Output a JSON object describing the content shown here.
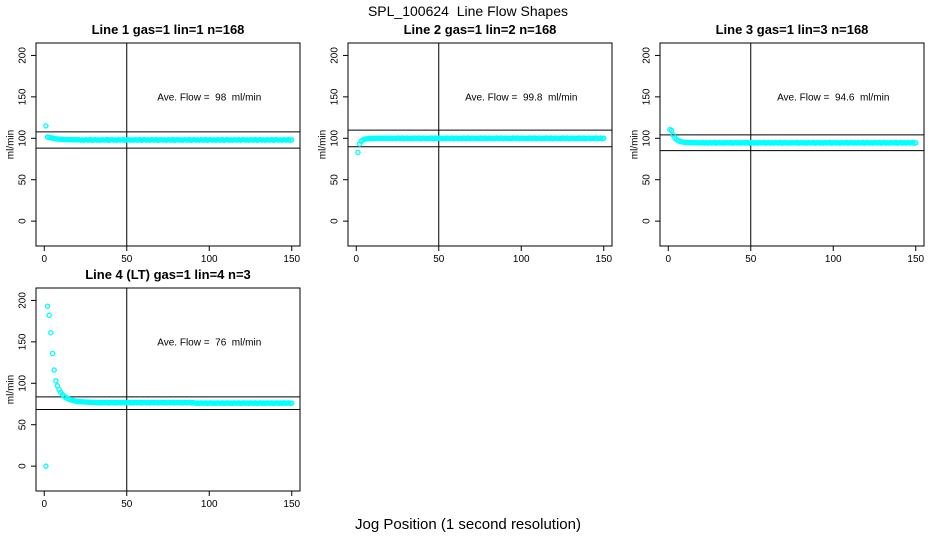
{
  "figure": {
    "title": "SPL_100624  Line Flow Shapes",
    "xlabel": "Jog Position (1 second resolution)"
  },
  "chart_data": {
    "type": "scatter",
    "title": "SPL_100624  Line Flow Shapes",
    "xlabel": "Jog Position (1 second resolution)",
    "ylabel": "ml/min",
    "layout": "2 rows x 3 cols; panels 1-3 in top row, panel 4 in bottom-left; other cells empty",
    "grid": false,
    "x_start": 1,
    "xlim": [
      -5,
      155
    ],
    "ylim": [
      -30,
      215
    ],
    "x_ticks": [
      0,
      50,
      100,
      150
    ],
    "y_ticks": [
      0,
      50,
      100,
      150,
      200
    ],
    "vline_x": 50,
    "point_color": "#00FFFF",
    "axis_color": "#000000",
    "panels": [
      {
        "title": "Line 1 gas=1 lin=1 n=168",
        "annotation": "Ave. Flow =  98  ml/min",
        "ave_flow": 98,
        "ref_lines": [
          107.8,
          88.2
        ],
        "y": [
          115,
          101.5,
          101,
          100.6,
          100.2,
          99.8,
          99.5,
          99.2,
          99,
          98.8,
          98.7,
          98.6,
          98.5,
          98.4,
          98.4,
          98.3,
          98.3,
          98.2,
          98.2,
          98.1,
          98.3,
          97.8,
          98.1,
          97.7,
          98.2,
          98,
          97.9,
          98.4,
          97.6,
          98.1,
          98.3,
          97.8,
          98.1,
          97.7,
          98.2,
          98,
          97.9,
          98.4,
          97.6,
          98.1,
          98.3,
          97.8,
          98.1,
          97.7,
          98.2,
          98,
          97.9,
          98.4,
          97.6,
          98.1,
          98.3,
          97.8,
          98.1,
          97.7,
          98.2,
          98,
          97.9,
          98.4,
          97.6,
          98.1,
          98.3,
          97.8,
          98.1,
          97.7,
          98.2,
          98,
          97.9,
          98.4,
          97.6,
          98.1,
          98.3,
          97.8,
          98.1,
          97.7,
          98.2,
          98,
          97.9,
          98.4,
          97.6,
          98.1,
          98.3,
          97.8,
          98.1,
          97.7,
          98.2,
          98,
          97.9,
          98.4,
          97.6,
          98.1,
          98.3,
          97.8,
          98.1,
          97.7,
          98.2,
          98,
          97.9,
          98.4,
          97.6,
          98.1,
          98.3,
          97.8,
          98.1,
          97.7,
          98.2,
          98,
          97.9,
          98.4,
          97.6,
          98.1,
          98.3,
          97.8,
          98.1,
          97.7,
          98.2,
          98,
          97.9,
          98.4,
          97.6,
          98.1,
          98.3,
          97.8,
          98.1,
          97.7,
          98.2,
          98,
          97.9,
          98.4,
          97.6,
          98.1,
          98.3,
          97.8,
          98.1,
          97.7,
          98.2,
          98,
          97.9,
          98.4,
          97.6,
          98.1,
          98.3,
          97.8,
          98.1,
          97.7,
          98.2,
          98,
          97.9,
          98.4,
          97.6,
          98.1
        ]
      },
      {
        "title": "Line 2 gas=1 lin=2 n=168",
        "annotation": "Ave. Flow =  99.8  ml/min",
        "ave_flow": 99.8,
        "ref_lines": [
          109.8,
          89.8
        ],
        "y": [
          83,
          93,
          96.5,
          98,
          98.8,
          99.3,
          99.5,
          99.7,
          99.8,
          99.9,
          99.9,
          100,
          100,
          100,
          100.1,
          100.1,
          100.1,
          100.1,
          100.1,
          100.1,
          100.2,
          99.8,
          100,
          99.7,
          100.3,
          100,
          99.9,
          100.3,
          99.6,
          100.1,
          100.2,
          99.8,
          100,
          99.7,
          100.3,
          100,
          99.9,
          100.3,
          99.6,
          100.1,
          100.2,
          99.8,
          100,
          99.7,
          100.3,
          100,
          99.9,
          100.3,
          99.6,
          100.1,
          100.2,
          99.8,
          100,
          99.7,
          100.3,
          100,
          99.9,
          100.3,
          99.6,
          100.1,
          100.2,
          99.8,
          100,
          99.7,
          100.3,
          100,
          99.9,
          100.3,
          99.6,
          100.1,
          100.2,
          99.8,
          100,
          99.7,
          100.3,
          100,
          99.9,
          100.3,
          99.6,
          100.1,
          100.2,
          99.8,
          100,
          99.7,
          100.3,
          100,
          99.9,
          100.3,
          99.6,
          100.1,
          100.2,
          99.8,
          100,
          99.7,
          100.3,
          100,
          99.9,
          100.3,
          99.6,
          100.1,
          100.2,
          99.8,
          100,
          99.7,
          100.3,
          100,
          99.9,
          100.3,
          99.6,
          100.1,
          100.2,
          99.8,
          100,
          99.7,
          100.3,
          100,
          99.9,
          100.3,
          99.6,
          100.1,
          100.2,
          99.8,
          100,
          99.7,
          100.3,
          100,
          99.9,
          100.3,
          99.6,
          100.1,
          100.2,
          99.8,
          100,
          99.7,
          100.3,
          100,
          99.9,
          100.3,
          99.6,
          100.1,
          100.2,
          99.8,
          100,
          99.7,
          100.3,
          100,
          99.9,
          100.3,
          99.6,
          100.1
        ]
      },
      {
        "title": "Line 3 gas=1 lin=3 n=168",
        "annotation": "Ave. Flow =  94.6  ml/min",
        "ave_flow": 94.6,
        "ref_lines": [
          104.1,
          85.1
        ],
        "y": [
          110.5,
          109.5,
          104,
          100.5,
          98.5,
          97.2,
          96.4,
          95.8,
          95.4,
          95.1,
          95,
          94.9,
          94.8,
          94.7,
          94.7,
          94.6,
          94.6,
          94.5,
          94.5,
          94.5,
          94.8,
          94.3,
          94.6,
          94.2,
          94.7,
          94.5,
          94.4,
          94.9,
          94.1,
          94.6,
          94.8,
          94.3,
          94.6,
          94.2,
          94.7,
          94.5,
          94.4,
          94.9,
          94.1,
          94.6,
          94.8,
          94.3,
          94.6,
          94.2,
          94.7,
          94.5,
          94.4,
          94.9,
          94.1,
          94.6,
          94.8,
          94.3,
          94.6,
          94.2,
          94.7,
          94.5,
          94.4,
          94.9,
          94.1,
          94.6,
          94.8,
          94.3,
          94.6,
          94.2,
          94.7,
          94.5,
          94.4,
          94.9,
          94.1,
          94.6,
          94.8,
          94.3,
          94.6,
          94.2,
          94.7,
          94.5,
          94.4,
          94.9,
          94.1,
          94.6,
          94.8,
          94.3,
          94.6,
          94.2,
          94.7,
          94.5,
          94.4,
          94.9,
          94.1,
          94.6,
          94.8,
          94.3,
          94.6,
          94.2,
          94.7,
          94.5,
          94.4,
          94.9,
          94.1,
          94.6,
          94.8,
          94.3,
          94.6,
          94.2,
          94.7,
          94.5,
          94.4,
          94.9,
          94.1,
          94.6,
          94.8,
          94.3,
          94.6,
          94.2,
          94.7,
          94.5,
          94.4,
          94.9,
          94.1,
          94.6,
          94.8,
          94.3,
          94.6,
          94.2,
          94.7,
          94.5,
          94.4,
          94.9,
          94.1,
          94.6,
          94.8,
          94.3,
          94.6,
          94.2,
          94.7,
          94.5,
          94.4,
          94.9,
          94.1,
          94.6,
          94.8,
          94.3,
          94.6,
          94.2,
          94.7,
          94.5,
          94.4,
          94.9,
          94.1,
          94.6
        ]
      },
      {
        "title": "Line 4 (LT) gas=1 lin=4 n=3",
        "annotation": "Ave. Flow =  76  ml/min",
        "ave_flow": 76,
        "ref_lines": [
          83.6,
          68.4
        ],
        "y": [
          0,
          193,
          182,
          161,
          136,
          116,
          103,
          97,
          92.5,
          89,
          86.5,
          84.5,
          83,
          81.8,
          80.8,
          80,
          79.4,
          78.9,
          78.5,
          78.2,
          78,
          77.8,
          77.6,
          77.5,
          77.4,
          77.3,
          77.2,
          77.1,
          77,
          77,
          76.9,
          76.5,
          76.8,
          76.4,
          76.9,
          76.7,
          76.6,
          77,
          76.3,
          76.7,
          76.9,
          76.5,
          76.8,
          76.4,
          76.9,
          76.7,
          76.6,
          77,
          76.3,
          76.7,
          76.9,
          76.5,
          76.8,
          76.4,
          76.9,
          76.7,
          76.6,
          77,
          76.3,
          76.7,
          76.9,
          76.5,
          76.8,
          76.4,
          76.9,
          76.7,
          76.6,
          77,
          76.3,
          76.7,
          76.9,
          76.5,
          76.8,
          76.4,
          76.9,
          76.7,
          76.6,
          77,
          76.3,
          76.7,
          76.9,
          76.5,
          76.8,
          76.4,
          76.9,
          76.7,
          76.6,
          77,
          76.3,
          76.7,
          76.3,
          75.9,
          76.2,
          75.8,
          76.4,
          76.1,
          76,
          76.4,
          75.7,
          76.1,
          76.3,
          75.9,
          76.2,
          75.8,
          76.4,
          76.1,
          76,
          76.4,
          75.7,
          76.1,
          76.3,
          75.9,
          76.2,
          75.8,
          76.4,
          76.1,
          76,
          76.4,
          75.7,
          76.1,
          76.3,
          75.9,
          76.2,
          75.8,
          76.4,
          76.1,
          76,
          76.4,
          75.7,
          76.1,
          76.3,
          75.9,
          76.2,
          75.8,
          76.4,
          76.1,
          76,
          76.4,
          75.7,
          76.1,
          76.3,
          75.9,
          76.2,
          75.8,
          76.4,
          76.1,
          76,
          76.4,
          75.7,
          76.1
        ]
      }
    ]
  }
}
